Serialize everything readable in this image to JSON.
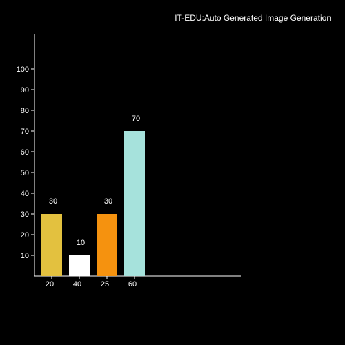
{
  "chart_data": {
    "type": "bar",
    "title": "IT-EDU:Auto Generated Image Generation",
    "xlabel": "",
    "ylabel": "",
    "categories": [
      "20",
      "40",
      "25",
      "60"
    ],
    "values": [
      30,
      10,
      30,
      70
    ],
    "data_labels": [
      "30",
      "10",
      "30",
      "70"
    ],
    "colors": [
      "#e3c13f",
      "#ffffff",
      "#f5920f",
      "#a6e2dc"
    ],
    "ylim": [
      0,
      110
    ],
    "yticks": [
      10,
      20,
      30,
      40,
      50,
      60,
      70,
      80,
      90,
      100
    ],
    "ytick_labels": [
      "10",
      "20",
      "30",
      "40",
      "50",
      "60",
      "70",
      "80",
      "90",
      "100"
    ],
    "grid": false,
    "legend": "none",
    "background": "#000000",
    "axis_color": "#ffffff"
  }
}
